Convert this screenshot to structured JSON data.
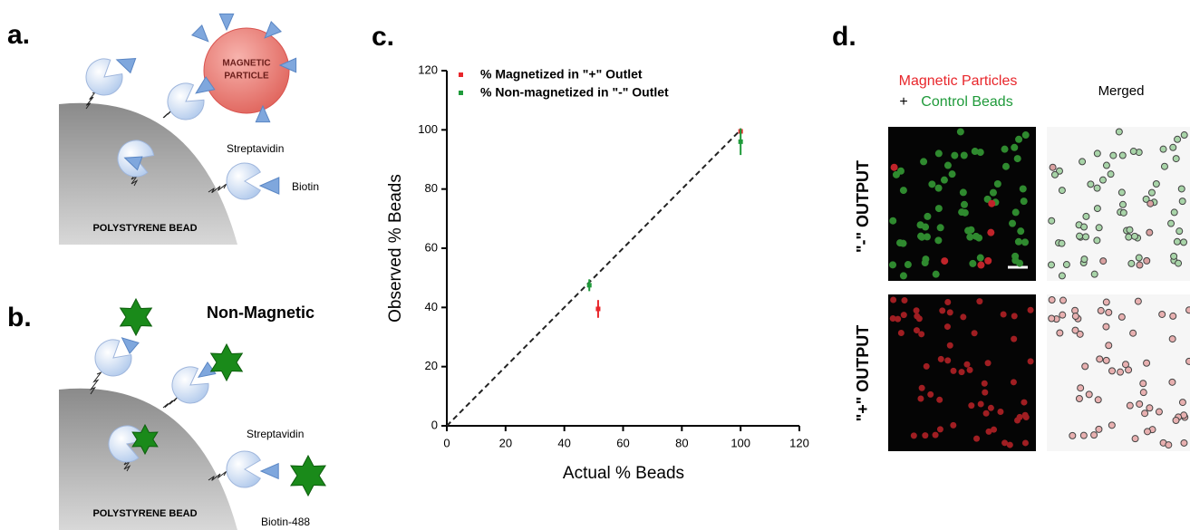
{
  "panel_a": {
    "label": "a.",
    "particle": [
      "MAGNETIC",
      "PARTICLE"
    ],
    "streptavidin": "Streptavidin",
    "biotin": "Biotin",
    "bead": "POLYSTYRENE BEAD"
  },
  "panel_b": {
    "label": "b.",
    "title": "Non-Magnetic",
    "streptavidin": "Streptavidin",
    "biotin": "Biotin-488",
    "bead": "POLYSTYRENE BEAD"
  },
  "chart_data": {
    "type": "scatter",
    "panel_label": "c.",
    "xlabel": "Actual % Beads",
    "ylabel": "Observed % Beads",
    "xlim": [
      0,
      120
    ],
    "ylim": [
      0,
      120
    ],
    "xticks": [
      0,
      20,
      40,
      60,
      80,
      100,
      120
    ],
    "yticks": [
      0,
      20,
      40,
      60,
      80,
      100,
      120
    ],
    "reference_line": {
      "x": [
        0,
        100
      ],
      "y": [
        0,
        100
      ]
    },
    "series": [
      {
        "name": "% Magnetized in \"+\" Outlet",
        "color": "#e8262b",
        "x": [
          51.5,
          100
        ],
        "values": [
          39.5,
          99.5
        ],
        "errors": [
          3,
          1
        ]
      },
      {
        "name": "% Non-magnetized in \"-\" Outlet",
        "color": "#1f9a3a",
        "x": [
          48.5,
          100
        ],
        "values": [
          47.5,
          96
        ],
        "errors": [
          2,
          4.5
        ]
      }
    ]
  },
  "panel_d": {
    "label": "d.",
    "legend_red": "Magnetic Particles",
    "legend_plus": "+",
    "legend_green": "Control Beads",
    "merged": "Merged",
    "rows": [
      "\"-\" OUTPUT",
      "\"+\" OUTPUT"
    ]
  }
}
